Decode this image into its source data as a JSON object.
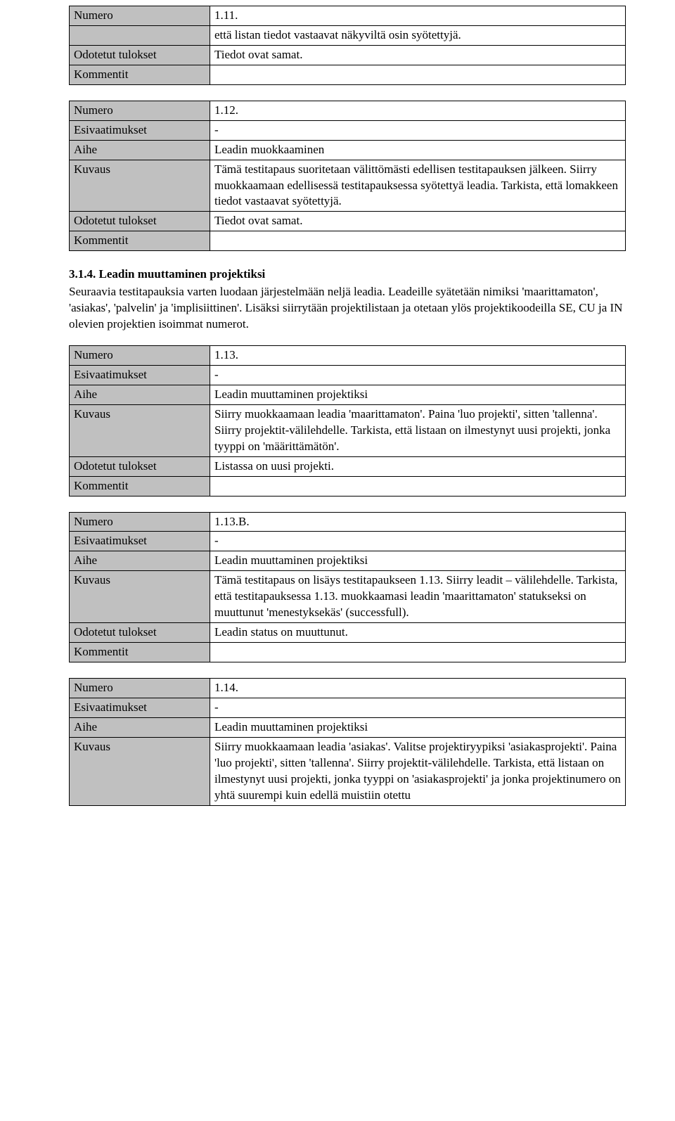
{
  "labels": {
    "numero": "Numero",
    "esivaatimukset": "Esivaatimukset",
    "aihe": "Aihe",
    "kuvaus": "Kuvaus",
    "odotetut": "Odotetut tulokset",
    "kommentit": "Kommentit"
  },
  "section": {
    "heading": "3.1.4. Leadin muuttaminen projektiksi",
    "intro": "Seuraavia testitapauksia varten luodaan järjestelmään neljä leadia. Leadeille syätetään nimiksi 'maarittamaton', 'asiakas', 'palvelin' ja 'implisiittinen'. Lisäksi siirrytään projektilistaan ja otetaan ylös projektikoodeilla SE, CU ja IN olevien projektien isoimmat numerot."
  },
  "tc1": {
    "numero": "1.11.",
    "kuvaus_cont": "että listan tiedot vastaavat näkyviltä osin syötettyjä.",
    "odotetut": "Tiedot ovat samat.",
    "kommentit": ""
  },
  "tc2": {
    "numero": "1.12.",
    "esivaatimukset": "-",
    "aihe": "Leadin muokkaaminen",
    "kuvaus": "Tämä testitapaus suoritetaan välittömästi edellisen testitapauksen jälkeen. Siirry muokkaamaan edellisessä testitapauksessa syötettyä leadia. Tarkista, että lomakkeen tiedot vastaavat syötettyjä.",
    "odotetut": "Tiedot ovat samat.",
    "kommentit": ""
  },
  "tc3": {
    "numero": "1.13.",
    "esivaatimukset": "-",
    "aihe": "Leadin muuttaminen projektiksi",
    "kuvaus": "Siirry muokkaamaan leadia 'maarittamaton'. Paina 'luo projekti', sitten 'tallenna'. Siirry projektit-välilehdelle. Tarkista, että listaan on ilmestynyt uusi projekti, jonka tyyppi on 'määrittämätön'.",
    "odotetut": "Listassa on uusi projekti.",
    "kommentit": ""
  },
  "tc4": {
    "numero": "1.13.B.",
    "esivaatimukset": "-",
    "aihe": "Leadin muuttaminen projektiksi",
    "kuvaus": "Tämä testitapaus on lisäys testitapaukseen 1.13. Siirry leadit – välilehdelle. Tarkista, että testitapauksessa 1.13. muokkaamasi leadin 'maarittamaton' statukseksi on muuttunut 'menestyksekäs' (successfull).",
    "odotetut": "Leadin status on muuttunut.",
    "kommentit": ""
  },
  "tc5": {
    "numero": "1.14.",
    "esivaatimukset": "-",
    "aihe": "Leadin muuttaminen projektiksi",
    "kuvaus": "Siirry muokkaamaan leadia 'asiakas'. Valitse projektiryypiksi 'asiakasprojekti'. Paina 'luo projekti', sitten 'tallenna'. Siirry projektit-välilehdelle. Tarkista, että listaan on ilmestynyt uusi projekti, jonka tyyppi on 'asiakasprojekti' ja jonka projektinumero on yhtä suurempi kuin edellä muistiin otettu"
  }
}
